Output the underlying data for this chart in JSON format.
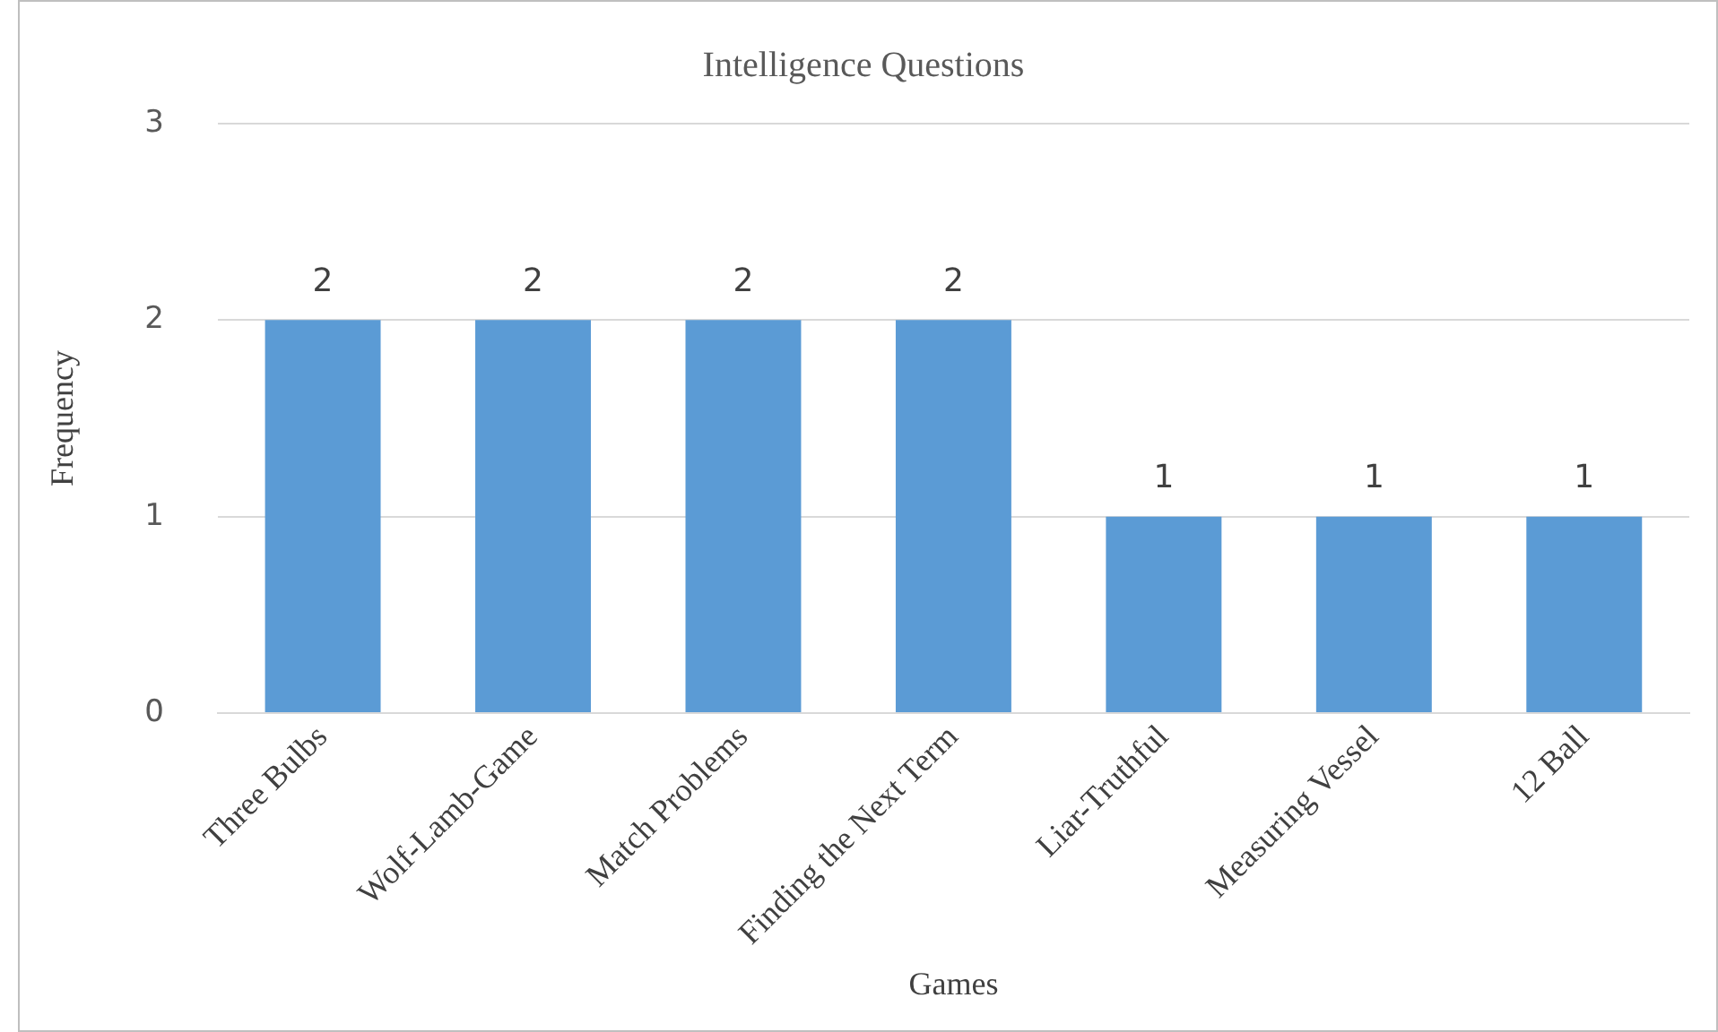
{
  "chart_data": {
    "type": "bar",
    "title": "Intelligence Questions",
    "xlabel": "Games",
    "ylabel": "Frequency",
    "categories": [
      "Three Bulbs",
      "Wolf-Lamb-Game",
      "Match Problems",
      "Finding the Next Term",
      "Liar-Truthful",
      "Measuring Vessel",
      "12 Ball"
    ],
    "values": [
      2,
      2,
      2,
      2,
      1,
      1,
      1
    ],
    "color": "#5b9bd5",
    "ylim": [
      0,
      3
    ],
    "yticks": [
      0,
      1,
      2,
      3
    ],
    "grid": "y",
    "data_labels": true
  }
}
